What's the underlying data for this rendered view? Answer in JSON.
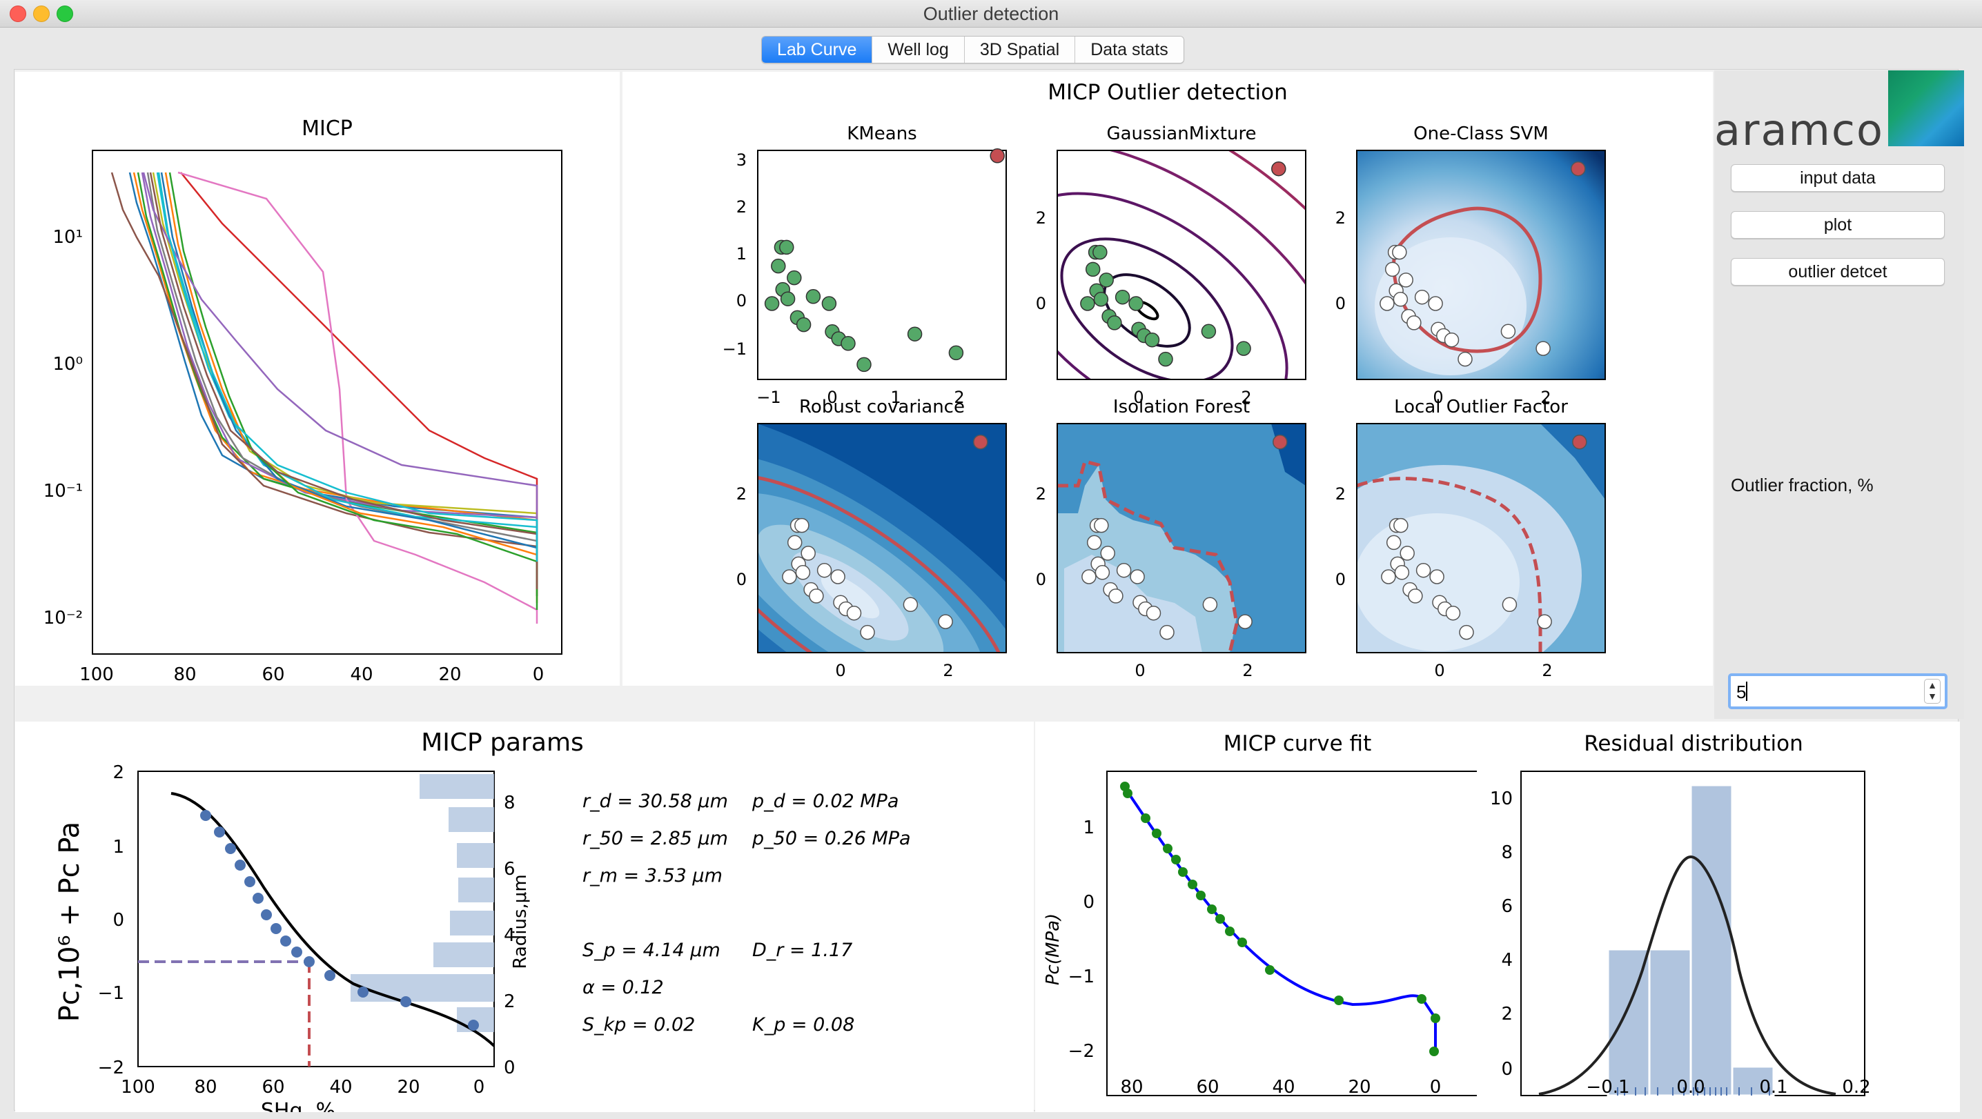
{
  "window": {
    "title": "Outlier detection"
  },
  "tabs": [
    "Lab Curve",
    "Well log",
    "3D Spatial",
    "Data stats"
  ],
  "active_tab": "Lab Curve",
  "sidebar": {
    "logo_text": "aramco",
    "buttons": {
      "input": "input data",
      "plot": "plot",
      "outlier": "outlier detcet"
    },
    "fraction_label": "Outlier fraction, %",
    "fraction_value": "5"
  },
  "colors": {
    "inlier": "#55a868",
    "outlier": "#c44e52",
    "accent": "#1b7cf6"
  },
  "micp_plot": {
    "title": "MICP",
    "y_ticks": [
      "10¹",
      "10⁰",
      "10⁻¹",
      "10⁻²"
    ],
    "x_ticks": [
      "100",
      "80",
      "60",
      "40",
      "20",
      "0"
    ]
  },
  "outlier_panel": {
    "suptitle": "MICP Outlier detection",
    "subplots": [
      "KMeans",
      "GaussianMixture",
      "One-Class SVM",
      "Robust covariance",
      "Isolation Forest",
      "Local Outlier Factor"
    ],
    "kmeans_x_ticks": [
      "−1",
      "0",
      "1",
      "2"
    ],
    "kmeans_y_ticks": [
      "3",
      "2",
      "1",
      "0",
      "−1"
    ],
    "x_ticks": [
      "0",
      "2"
    ],
    "y_ticks": [
      "2",
      "0"
    ]
  },
  "params_plot": {
    "title": "MICP params",
    "y_label": "Pc,10⁶ + Pc Pa",
    "y2_label": "Radius,μm",
    "x_label": "SHg, %",
    "y_ticks": [
      "2",
      "1",
      "0",
      "−1",
      "−2"
    ],
    "y2_ticks": [
      "8",
      "6",
      "4",
      "2",
      "0"
    ],
    "x_ticks": [
      "100",
      "80",
      "60",
      "40",
      "20",
      "0"
    ],
    "params_left": [
      "r_d = 30.58 μm",
      "r_50 = 2.85 μm",
      "r_m = 3.53 μm",
      "S_p = 4.14 μm",
      "α = 0.12",
      "S_kp = 0.02"
    ],
    "params_right": [
      "p_d = 0.02 MPa",
      "p_50 = 0.26 MPa",
      "D_r = 1.17",
      "K_p = 0.08"
    ]
  },
  "curve_fit": {
    "title": "MICP curve fit",
    "y_label": "Pc(MPa)",
    "x_label": "SHg",
    "y_ticks": [
      "1",
      "0",
      "−1",
      "−2"
    ],
    "x_ticks": [
      "80",
      "60",
      "40",
      "20",
      "0"
    ]
  },
  "residual": {
    "title": "Residual distribution",
    "y_ticks": [
      "10",
      "8",
      "6",
      "4",
      "2",
      "0"
    ],
    "x_ticks": [
      "−0.1",
      "0.0",
      "0.1",
      "0.2"
    ]
  },
  "chart_data": [
    {
      "type": "line",
      "title": "MICP",
      "x_range": [
        100,
        0
      ],
      "y_scale": "log",
      "ylim": [
        0.007,
        50
      ],
      "series_count": 20
    },
    {
      "type": "scatter",
      "title": "KMeans",
      "x": [
        -0.95,
        -0.85,
        -0.8,
        -0.78,
        -0.72,
        -0.7,
        -0.6,
        -0.55,
        -0.45,
        -0.3,
        -0.05,
        0.0,
        0.1,
        0.25,
        0.5,
        1.3,
        1.95,
        2.6
      ],
      "y": [
        0.0,
        0.8,
        1.2,
        0.3,
        1.2,
        0.1,
        0.55,
        -0.3,
        -0.45,
        0.15,
        0.0,
        -0.6,
        -0.75,
        -0.85,
        -1.3,
        -0.65,
        -1.05,
        3.15
      ],
      "outlier_index": [
        17
      ]
    },
    {
      "type": "histogram",
      "title": "Residual distribution",
      "bins": [
        -0.1,
        -0.05,
        0.0,
        0.05,
        0.1
      ],
      "counts": [
        4.5,
        4.5,
        10.5,
        1.0
      ],
      "xlim": [
        -0.2,
        0.2
      ],
      "ylim": [
        0,
        11
      ]
    }
  ]
}
